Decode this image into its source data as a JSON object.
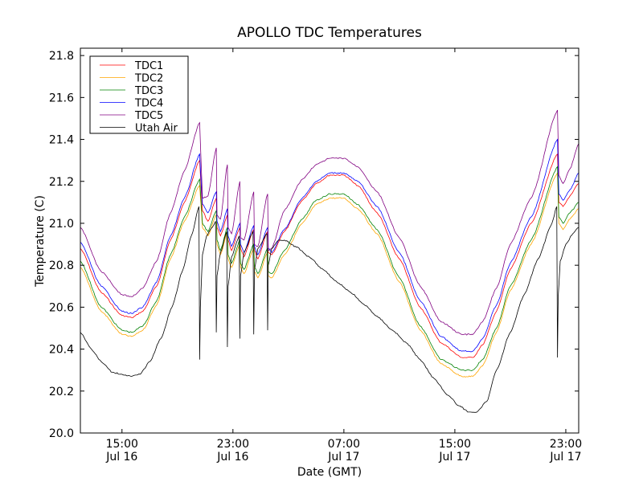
{
  "chart_data": {
    "type": "line",
    "title": "APOLLO TDC Temperatures",
    "xlabel": "Date (GMT)",
    "ylabel": "Temperature (C)",
    "x_units": "hours since Jul 16 00:00 GMT",
    "xlim": [
      12.0,
      47.93
    ],
    "ylim": [
      20.0,
      21.835
    ],
    "yticks": [
      20.0,
      20.2,
      20.4,
      20.6,
      20.8,
      21.0,
      21.2,
      21.4,
      21.6,
      21.8
    ],
    "ytick_labels": [
      "20.0",
      "20.2",
      "20.4",
      "20.6",
      "20.8",
      "21.0",
      "21.2",
      "21.4",
      "21.6",
      "21.8"
    ],
    "xticks": [
      15,
      23,
      31,
      39,
      47
    ],
    "xtick_labels": [
      {
        "time": "15:00",
        "date": "Jul 16"
      },
      {
        "time": "23:00",
        "date": "Jul 16"
      },
      {
        "time": "07:00",
        "date": "Jul 17"
      },
      {
        "time": "15:00",
        "date": "Jul 17"
      },
      {
        "time": "23:00",
        "date": "Jul 17"
      }
    ],
    "grid": false,
    "legend_position": "top-left",
    "series": [
      {
        "name": "TDC1",
        "color": "#ff0000",
        "x": [
          12.0,
          13.5,
          15.0,
          15.7,
          16.5,
          17.5,
          18.5,
          19.5,
          20.6,
          20.8,
          21.2,
          21.8,
          21.85,
          22.1,
          22.6,
          22.65,
          22.9,
          23.5,
          23.55,
          23.8,
          24.5,
          24.55,
          24.8,
          25.5,
          25.55,
          25.8,
          26.7,
          28.0,
          29.0,
          30.0,
          31.0,
          32.0,
          33.4,
          35.0,
          36.5,
          38.0,
          39.5,
          40.3,
          41.0,
          42.0,
          43.0,
          44.5,
          46.4,
          46.5,
          46.8,
          47.3,
          47.93
        ],
        "y": [
          20.88,
          20.67,
          20.56,
          20.55,
          20.58,
          20.7,
          20.92,
          21.1,
          21.3,
          21.06,
          21.01,
          21.12,
          20.98,
          20.94,
          21.04,
          20.92,
          20.87,
          20.98,
          20.88,
          20.84,
          20.97,
          20.87,
          20.83,
          20.96,
          20.86,
          20.85,
          20.96,
          21.11,
          21.19,
          21.23,
          21.23,
          21.18,
          21.05,
          20.83,
          20.6,
          20.43,
          20.36,
          20.36,
          20.42,
          20.58,
          20.78,
          21.0,
          21.33,
          21.1,
          21.08,
          21.13,
          21.19
        ]
      },
      {
        "name": "TDC2",
        "color": "#ffa500",
        "x": [
          12.0,
          13.5,
          15.0,
          15.7,
          16.5,
          17.5,
          18.5,
          19.5,
          20.6,
          20.8,
          21.2,
          21.8,
          21.85,
          22.1,
          22.6,
          22.65,
          22.9,
          23.5,
          23.55,
          23.8,
          24.5,
          24.55,
          24.8,
          25.5,
          25.55,
          25.8,
          26.7,
          28.0,
          29.0,
          30.0,
          31.0,
          32.0,
          33.4,
          35.0,
          36.5,
          38.0,
          39.5,
          40.3,
          41.0,
          42.0,
          43.0,
          44.5,
          46.4,
          46.5,
          46.8,
          47.3,
          47.93
        ],
        "y": [
          20.79,
          20.58,
          20.47,
          20.46,
          20.49,
          20.61,
          20.83,
          21.01,
          21.18,
          20.98,
          20.94,
          21.04,
          20.9,
          20.85,
          20.96,
          20.83,
          20.79,
          20.9,
          20.79,
          20.76,
          20.88,
          20.77,
          20.74,
          20.86,
          20.75,
          20.74,
          20.85,
          21.0,
          21.09,
          21.12,
          21.12,
          21.07,
          20.95,
          20.72,
          20.49,
          20.33,
          20.27,
          20.27,
          20.32,
          20.48,
          20.68,
          20.9,
          21.24,
          21.0,
          20.97,
          21.02,
          21.07
        ]
      },
      {
        "name": "TDC3",
        "color": "#008000",
        "x": [
          12.0,
          13.5,
          15.0,
          15.7,
          16.5,
          17.5,
          18.5,
          19.5,
          20.6,
          20.8,
          21.2,
          21.8,
          21.85,
          22.1,
          22.6,
          22.65,
          22.9,
          23.5,
          23.55,
          23.8,
          24.5,
          24.55,
          24.8,
          25.5,
          25.55,
          25.8,
          26.7,
          28.0,
          29.0,
          30.0,
          31.0,
          32.0,
          33.4,
          35.0,
          36.5,
          38.0,
          39.5,
          40.3,
          41.0,
          42.0,
          43.0,
          44.5,
          46.4,
          46.5,
          46.8,
          47.3,
          47.93
        ],
        "y": [
          20.82,
          20.6,
          20.49,
          20.48,
          20.51,
          20.63,
          20.85,
          21.03,
          21.21,
          21.0,
          20.96,
          21.06,
          20.92,
          20.87,
          20.98,
          20.85,
          20.81,
          20.92,
          20.81,
          20.78,
          20.9,
          20.79,
          20.76,
          20.88,
          20.77,
          20.76,
          20.87,
          21.02,
          21.11,
          21.14,
          21.14,
          21.09,
          20.97,
          20.74,
          20.51,
          20.35,
          20.3,
          20.3,
          20.35,
          20.5,
          20.7,
          20.92,
          21.27,
          21.03,
          21.0,
          21.05,
          21.1
        ]
      },
      {
        "name": "TDC4",
        "color": "#0000ff",
        "x": [
          12.0,
          13.5,
          15.0,
          15.7,
          16.5,
          17.5,
          18.5,
          19.5,
          20.6,
          20.8,
          21.2,
          21.8,
          21.85,
          22.1,
          22.6,
          22.65,
          22.9,
          23.5,
          23.55,
          23.8,
          24.5,
          24.55,
          24.8,
          25.5,
          25.55,
          25.8,
          26.7,
          28.0,
          29.0,
          30.0,
          31.0,
          32.0,
          33.4,
          35.0,
          36.5,
          38.0,
          39.5,
          40.3,
          41.0,
          42.0,
          43.0,
          44.5,
          46.4,
          46.5,
          46.8,
          47.3,
          47.93
        ],
        "y": [
          20.91,
          20.7,
          20.58,
          20.57,
          20.6,
          20.72,
          20.94,
          21.12,
          21.33,
          21.09,
          21.05,
          21.15,
          21.01,
          20.96,
          21.07,
          20.94,
          20.89,
          21.0,
          20.9,
          20.86,
          20.99,
          20.89,
          20.85,
          20.98,
          20.88,
          20.86,
          20.97,
          21.12,
          21.2,
          21.24,
          21.24,
          21.2,
          21.08,
          20.86,
          20.63,
          20.46,
          20.39,
          20.39,
          20.45,
          20.61,
          20.81,
          21.03,
          21.4,
          21.14,
          21.11,
          21.16,
          21.24
        ]
      },
      {
        "name": "TDC5",
        "color": "#800080",
        "x": [
          12.0,
          13.5,
          15.0,
          15.7,
          16.5,
          17.5,
          18.5,
          19.5,
          20.6,
          20.8,
          21.2,
          21.8,
          21.85,
          22.1,
          22.6,
          22.65,
          22.9,
          23.5,
          23.55,
          23.8,
          24.5,
          24.55,
          24.8,
          25.5,
          25.55,
          25.8,
          26.7,
          28.0,
          29.0,
          30.0,
          31.0,
          32.0,
          33.4,
          35.0,
          36.5,
          38.0,
          39.5,
          40.3,
          41.0,
          42.0,
          43.0,
          44.5,
          46.4,
          46.5,
          46.8,
          47.3,
          47.93
        ],
        "y": [
          20.98,
          20.77,
          20.66,
          20.65,
          20.69,
          20.82,
          21.05,
          21.25,
          21.48,
          21.12,
          21.13,
          21.36,
          21.04,
          21.02,
          21.28,
          20.98,
          20.95,
          21.2,
          20.93,
          20.92,
          21.15,
          20.9,
          20.89,
          21.14,
          20.87,
          20.88,
          21.06,
          21.21,
          21.28,
          21.31,
          21.31,
          21.27,
          21.15,
          20.93,
          20.7,
          20.53,
          20.47,
          20.47,
          20.53,
          20.69,
          20.9,
          21.12,
          21.54,
          21.23,
          21.19,
          21.26,
          21.38
        ]
      },
      {
        "name": "Utah Air",
        "color": "#000000",
        "x": [
          12.0,
          12.8,
          13.5,
          14.3,
          15.0,
          15.7,
          16.3,
          17.0,
          17.8,
          18.6,
          19.4,
          20.0,
          20.55,
          20.6,
          20.65,
          20.8,
          21.1,
          21.5,
          21.75,
          21.8,
          21.85,
          22.1,
          22.55,
          22.6,
          22.65,
          22.9,
          23.45,
          23.5,
          23.55,
          23.8,
          24.45,
          24.5,
          24.55,
          24.8,
          25.45,
          25.5,
          25.55,
          25.8,
          26.3,
          26.7,
          27.5,
          28.5,
          29.5,
          30.5,
          31.5,
          32.5,
          33.5,
          34.5,
          35.5,
          36.5,
          37.5,
          38.5,
          39.3,
          40.0,
          40.6,
          41.3,
          42.0,
          43.0,
          44.0,
          45.0,
          46.0,
          46.35,
          46.4,
          46.45,
          46.6,
          47.0,
          47.5,
          47.93
        ],
        "y": [
          20.48,
          20.4,
          20.34,
          20.29,
          20.28,
          20.27,
          20.28,
          20.34,
          20.45,
          20.6,
          20.78,
          20.94,
          21.08,
          20.35,
          20.6,
          20.85,
          20.94,
          20.98,
          21.01,
          20.48,
          20.75,
          20.86,
          20.96,
          20.41,
          20.7,
          20.84,
          20.94,
          20.45,
          20.75,
          20.86,
          20.96,
          20.47,
          20.78,
          20.88,
          20.95,
          20.49,
          20.8,
          20.88,
          20.92,
          20.92,
          20.89,
          20.84,
          20.78,
          20.72,
          20.67,
          20.61,
          20.55,
          20.49,
          20.43,
          20.35,
          20.26,
          20.18,
          20.13,
          20.1,
          20.1,
          20.15,
          20.3,
          20.48,
          20.66,
          20.83,
          21.0,
          21.08,
          20.36,
          20.65,
          20.82,
          20.9,
          20.95,
          20.98
        ]
      }
    ]
  }
}
